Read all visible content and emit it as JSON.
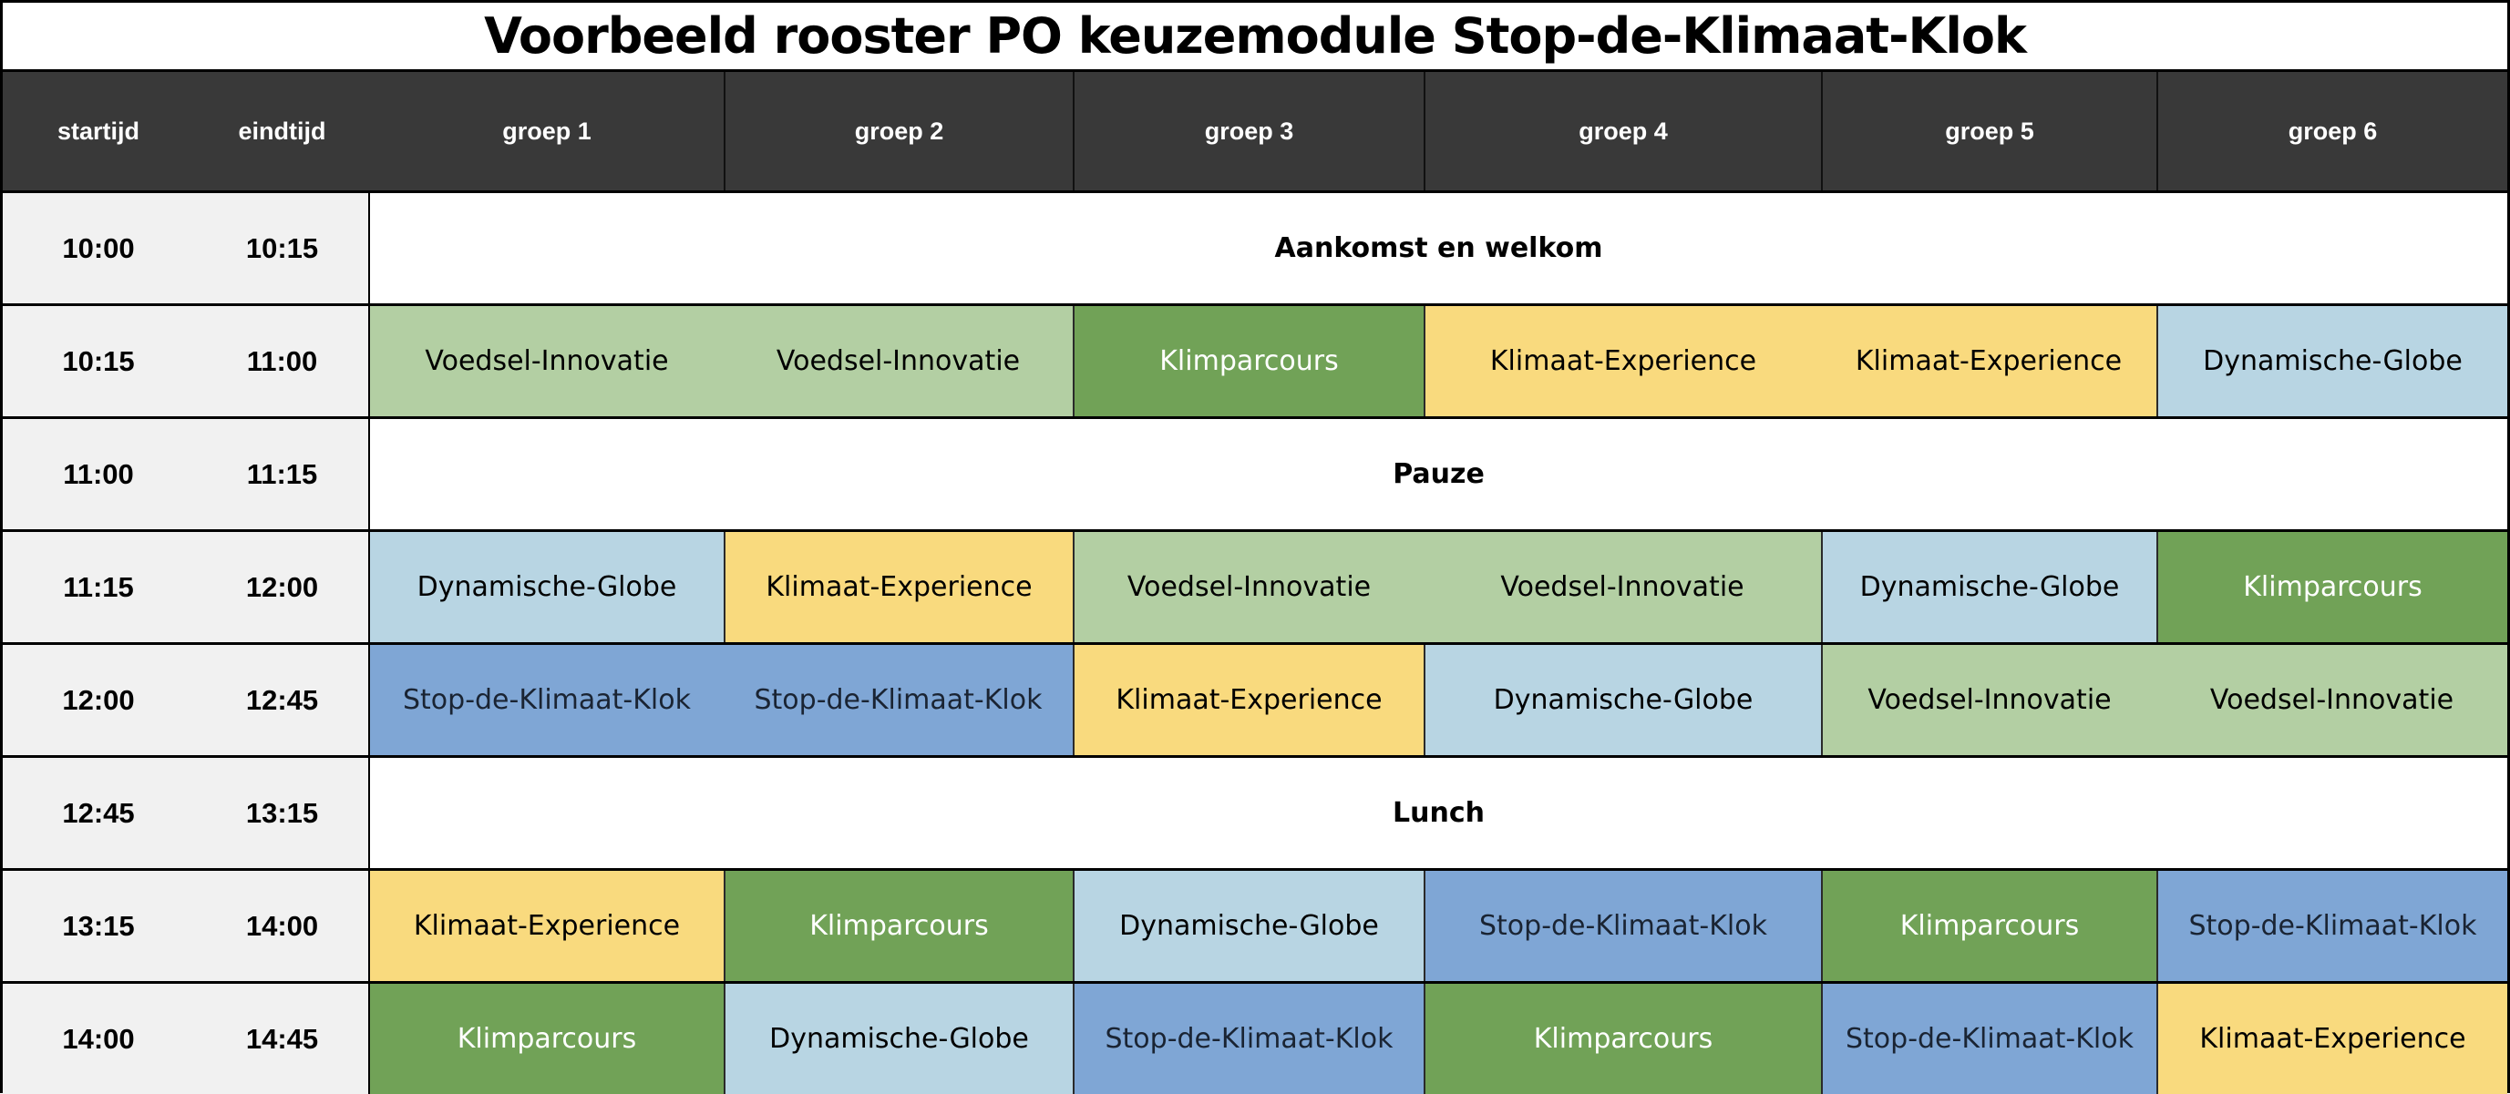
{
  "title": "Voorbeeld rooster PO keuzemodule  Stop-de-Klimaat-Klok",
  "headers": [
    "startijd",
    "eindtijd",
    "groep 1",
    "groep 2",
    "groep 3",
    "groep 4",
    "groep 5",
    "groep 6"
  ],
  "colors": {
    "header_bg": "#393939",
    "time_bg": "#f1f1f1",
    "Voedsel-Innovatie": "#b3cfa3",
    "Klimparcours": "#71a257",
    "Klimaat-Experience": "#f9da7e",
    "Dynamische-Globe": "#b8d5e3",
    "Stop-de-Klimaat-Klok": "#7fa6d5"
  },
  "rows": [
    {
      "start": "10:00",
      "end": "10:15",
      "span": "Aankomst en welkom"
    },
    {
      "start": "10:15",
      "end": "11:00",
      "cells": [
        "Voedsel-Innovatie",
        "Voedsel-Innovatie",
        "Klimparcours",
        "Klimaat-Experience",
        "Klimaat-Experience",
        "Dynamische-Globe"
      ]
    },
    {
      "start": "11:00",
      "end": "11:15",
      "span": "Pauze"
    },
    {
      "start": "11:15",
      "end": "12:00",
      "cells": [
        "Dynamische-Globe",
        "Klimaat-Experience",
        "Voedsel-Innovatie",
        "Voedsel-Innovatie",
        "Dynamische-Globe",
        "Klimparcours"
      ]
    },
    {
      "start": "12:00",
      "end": "12:45",
      "cells": [
        "Stop-de-Klimaat-Klok",
        "Stop-de-Klimaat-Klok",
        "Klimaat-Experience",
        "Dynamische-Globe",
        "Voedsel-Innovatie",
        "Voedsel-Innovatie"
      ]
    },
    {
      "start": "12:45",
      "end": "13:15",
      "span": "Lunch"
    },
    {
      "start": "13:15",
      "end": "14:00",
      "cells": [
        "Klimaat-Experience",
        "Klimparcours",
        "Dynamische-Globe",
        "Stop-de-Klimaat-Klok",
        "Klimparcours",
        "Stop-de-Klimaat-Klok"
      ]
    },
    {
      "start": "14:00",
      "end": "14:45",
      "cells": [
        "Klimparcours",
        "Dynamische-Globe",
        "Stop-de-Klimaat-Klok",
        "Klimparcours",
        "Stop-de-Klimaat-Klok",
        "Klimaat-Experience"
      ]
    }
  ]
}
